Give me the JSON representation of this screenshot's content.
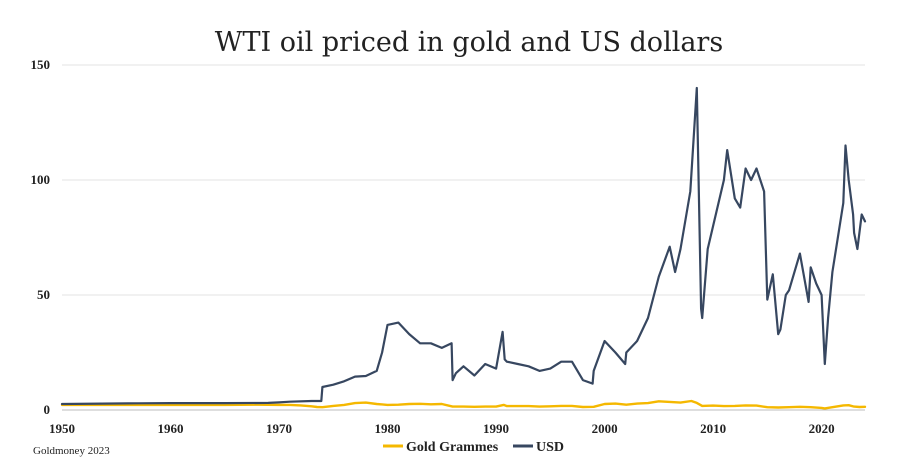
{
  "chart_data": {
    "type": "line",
    "title": "WTI oil priced in gold and US dollars",
    "xlabel": "",
    "ylabel": "",
    "xlim": [
      1950,
      2024
    ],
    "ylim": [
      0,
      150
    ],
    "x_ticks": [
      "1950",
      "1960",
      "1970",
      "1980",
      "1990",
      "2000",
      "2010",
      "2020"
    ],
    "y_ticks": [
      "0",
      "50",
      "100",
      "150"
    ],
    "grid": "horizontal",
    "legend_position": "bottom-center",
    "series": [
      {
        "name": "Gold Grammes",
        "color": "#f5b800",
        "x": [
          1950,
          1955,
          1960,
          1965,
          1968,
          1970,
          1971,
          1972,
          1973,
          1973.5,
          1974,
          1975,
          1976,
          1977,
          1978,
          1979,
          1980,
          1981,
          1982,
          1983,
          1984,
          1985,
          1986,
          1987,
          1988,
          1989,
          1990,
          1990.7,
          1991,
          1992,
          1993,
          1994,
          1995,
          1996,
          1997,
          1998,
          1999,
          2000,
          2001,
          2002,
          2003,
          2004,
          2005,
          2006,
          2007,
          2008,
          2008.5,
          2009,
          2010,
          2011,
          2012,
          2013,
          2014,
          2015,
          2016,
          2017,
          2018,
          2019,
          2020,
          2020.3,
          2021,
          2022,
          2022.5,
          2023,
          2023.5,
          2024
        ],
        "y": [
          2.2,
          2.2,
          2.2,
          2.2,
          2.3,
          2.2,
          2.2,
          2.0,
          1.6,
          1.3,
          1.2,
          1.8,
          2.2,
          3.0,
          3.2,
          2.6,
          2.2,
          2.3,
          2.6,
          2.7,
          2.5,
          2.6,
          1.5,
          1.5,
          1.4,
          1.5,
          1.5,
          2.2,
          1.7,
          1.7,
          1.7,
          1.5,
          1.6,
          1.8,
          1.8,
          1.3,
          1.4,
          2.6,
          2.8,
          2.3,
          2.8,
          3.0,
          3.8,
          3.5,
          3.2,
          3.9,
          3.1,
          1.8,
          1.9,
          1.7,
          1.8,
          2.0,
          1.9,
          1.2,
          1.1,
          1.2,
          1.4,
          1.2,
          0.9,
          0.7,
          1.2,
          2.0,
          2.1,
          1.5,
          1.3,
          1.4
        ]
      },
      {
        "name": "USD",
        "color": "#374760",
        "x": [
          1950,
          1957,
          1960,
          1965,
          1969,
          1970,
          1971,
          1973,
          1973.9,
          1974,
          1975,
          1976,
          1977,
          1978,
          1979,
          1979.5,
          1980,
          1981,
          1982,
          1983,
          1984,
          1985,
          1985.9,
          1986,
          1986.3,
          1987,
          1988,
          1989,
          1990,
          1990.6,
          1990.8,
          1991,
          1992,
          1993,
          1994,
          1995,
          1996,
          1997,
          1998,
          1998.9,
          1999,
          2000,
          2001,
          2001.9,
          2002,
          2003,
          2004,
          2005,
          2006,
          2006.5,
          2007,
          2007.9,
          2008.5,
          2008.9,
          2009,
          2009.5,
          2010,
          2011,
          2011.3,
          2012,
          2012.5,
          2013,
          2013.5,
          2014,
          2014.7,
          2015,
          2015.5,
          2016,
          2016.2,
          2016.7,
          2017,
          2018,
          2018.8,
          2019,
          2019.5,
          2020,
          2020.3,
          2020.6,
          2021,
          2022,
          2022.2,
          2022.5,
          2022.9,
          2023,
          2023.3,
          2023.7,
          2024
        ],
        "y": [
          2.6,
          2.9,
          3.0,
          3.0,
          3.1,
          3.3,
          3.6,
          3.9,
          3.9,
          10.0,
          11.0,
          12.5,
          14.5,
          14.8,
          17.0,
          25.0,
          37.0,
          38.0,
          33.0,
          29.0,
          29.0,
          27.0,
          29.0,
          13.0,
          16.0,
          19.0,
          15.0,
          20.0,
          18.0,
          34.0,
          22.0,
          21.0,
          20.0,
          19.0,
          17.0,
          18.0,
          21.0,
          21.0,
          13.0,
          11.5,
          17.0,
          30.0,
          25.0,
          20.0,
          25.0,
          30.0,
          40.0,
          58.0,
          71.0,
          60.0,
          70.0,
          95.0,
          140.0,
          44.0,
          40.0,
          70.0,
          80.0,
          100.0,
          113.0,
          92.0,
          88.0,
          105.0,
          100.0,
          105.0,
          95.0,
          48.0,
          59.0,
          33.0,
          35.0,
          50.0,
          52.0,
          68.0,
          47.0,
          62.0,
          55.0,
          50.0,
          20.0,
          40.0,
          60.0,
          90.0,
          115.0,
          100.0,
          85.0,
          77.0,
          70.0,
          85.0,
          82.0
        ]
      }
    ],
    "source_note": "Goldmoney 2023"
  }
}
